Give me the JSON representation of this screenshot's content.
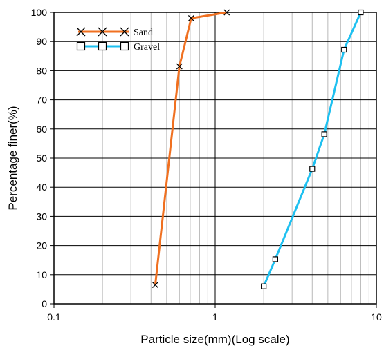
{
  "chart_data": {
    "type": "line",
    "xlabel": "Particle size(mm)(Log scale)",
    "ylabel": "Percentage finer(%)",
    "xscale": "log",
    "xlim": [
      0.1,
      10
    ],
    "ylim": [
      0,
      100
    ],
    "xticks": [
      "0.1",
      "1",
      "10"
    ],
    "yticks": [
      "0",
      "10",
      "20",
      "30",
      "40",
      "50",
      "60",
      "70",
      "80",
      "90",
      "100"
    ],
    "grid": true,
    "legend_position": "top-left",
    "series": [
      {
        "name": "Sand",
        "color": "#F07020",
        "marker": "x",
        "x": [
          0.425,
          0.6,
          0.71,
          1.18
        ],
        "y": [
          6.5,
          81.5,
          98,
          100
        ]
      },
      {
        "name": "Gravel",
        "color": "#1EC0F0",
        "marker": "square",
        "x": [
          2.0,
          2.36,
          4.0,
          4.75,
          6.3,
          8.0
        ],
        "y": [
          6,
          15.3,
          46.3,
          58.2,
          87.2,
          100
        ]
      }
    ]
  }
}
